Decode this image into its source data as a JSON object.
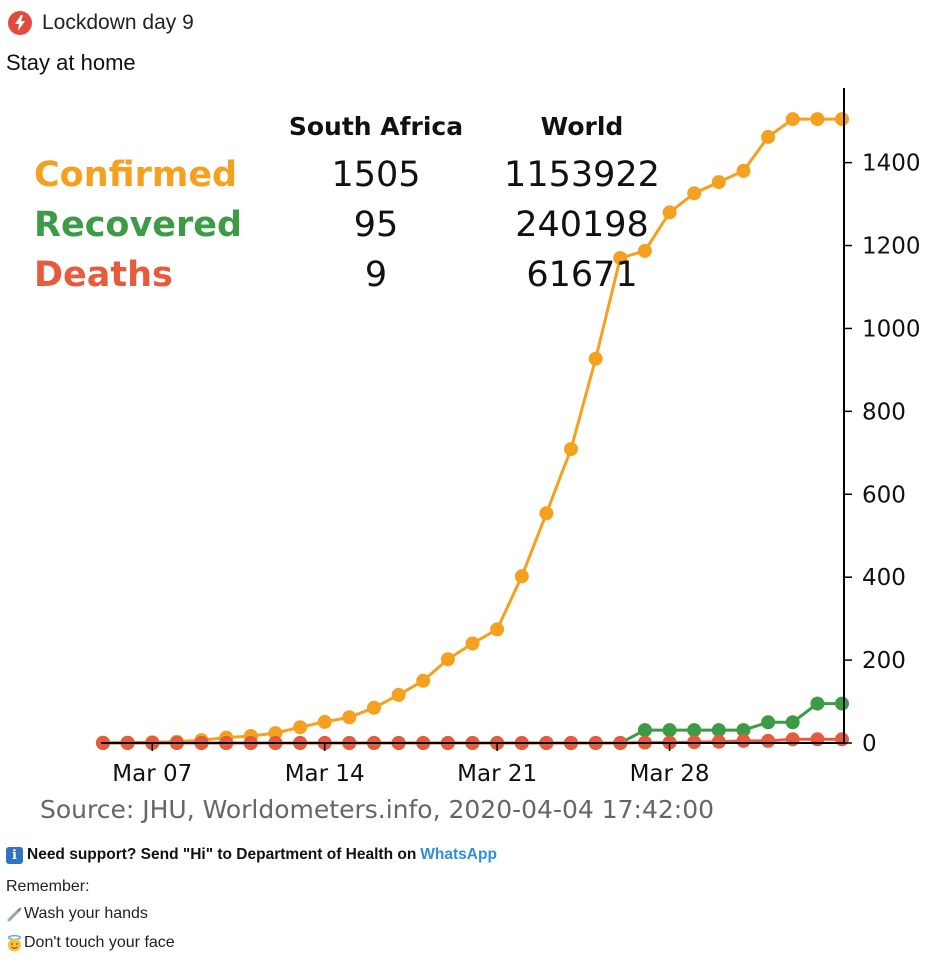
{
  "header": {
    "title": "Lockdown day 9",
    "icon": "red-lightning-icon"
  },
  "subtitle": "Stay at home",
  "stats": {
    "col_sa": "South Africa",
    "col_world": "World",
    "rows": [
      {
        "label": "Confirmed",
        "sa": "1505",
        "world": "1153922",
        "color": "#f5a01f"
      },
      {
        "label": "Recovered",
        "sa": "95",
        "world": "240198",
        "color": "#3d9b45"
      },
      {
        "label": "Deaths",
        "sa": "9",
        "world": "61671",
        "color": "#e85a3c"
      }
    ]
  },
  "source": "Source: JHU, Worldometers.info, 2020-04-04 17:42:00",
  "support": {
    "text": "Need support? Send \"Hi\" to Department of Health on",
    "link": "WhatsApp"
  },
  "remember": {
    "title": "Remember:",
    "tips": [
      {
        "icon": "syringe-icon",
        "text": "Wash your hands"
      },
      {
        "icon": "angel-face-icon",
        "text": "Don't touch your face"
      }
    ]
  },
  "chart_data": {
    "type": "line",
    "x": [
      "2020-03-05",
      "2020-03-06",
      "2020-03-07",
      "2020-03-08",
      "2020-03-09",
      "2020-03-10",
      "2020-03-11",
      "2020-03-12",
      "2020-03-13",
      "2020-03-14",
      "2020-03-15",
      "2020-03-16",
      "2020-03-17",
      "2020-03-18",
      "2020-03-19",
      "2020-03-20",
      "2020-03-21",
      "2020-03-22",
      "2020-03-23",
      "2020-03-24",
      "2020-03-25",
      "2020-03-26",
      "2020-03-27",
      "2020-03-28",
      "2020-03-29",
      "2020-03-30",
      "2020-03-31",
      "2020-04-01",
      "2020-04-02",
      "2020-04-03",
      "2020-04-04"
    ],
    "xticks": [
      {
        "date": "2020-03-07",
        "label": "Mar 07"
      },
      {
        "date": "2020-03-14",
        "label": "Mar 14"
      },
      {
        "date": "2020-03-21",
        "label": "Mar 21"
      },
      {
        "date": "2020-03-28",
        "label": "Mar 28"
      }
    ],
    "series": [
      {
        "key": "confirmed",
        "color": "#f5a01f",
        "values": [
          1,
          1,
          2,
          3,
          7,
          13,
          17,
          24,
          38,
          51,
          62,
          85,
          116,
          150,
          202,
          240,
          274,
          402,
          554,
          709,
          927,
          1170,
          1187,
          1280,
          1326,
          1353,
          1380,
          1462,
          1505,
          1505,
          1505
        ]
      },
      {
        "key": "recovered",
        "color": "#3d9b45",
        "values": [
          0,
          0,
          0,
          0,
          0,
          0,
          0,
          0,
          0,
          0,
          0,
          0,
          0,
          0,
          0,
          0,
          0,
          0,
          0,
          0,
          0,
          0,
          31,
          31,
          31,
          31,
          31,
          50,
          50,
          95,
          95
        ]
      },
      {
        "key": "deaths",
        "color": "#e85a3c",
        "values": [
          0,
          0,
          0,
          0,
          0,
          0,
          0,
          0,
          0,
          0,
          0,
          0,
          0,
          0,
          0,
          0,
          0,
          0,
          0,
          0,
          0,
          0,
          1,
          1,
          2,
          3,
          5,
          5,
          9,
          9,
          9
        ]
      }
    ],
    "yticks": [
      0,
      200,
      400,
      600,
      800,
      1000,
      1200,
      1400
    ],
    "ylim": [
      0,
      1580
    ],
    "xlabel": "",
    "ylabel": "",
    "grid": false,
    "yaxis_side": "right"
  }
}
